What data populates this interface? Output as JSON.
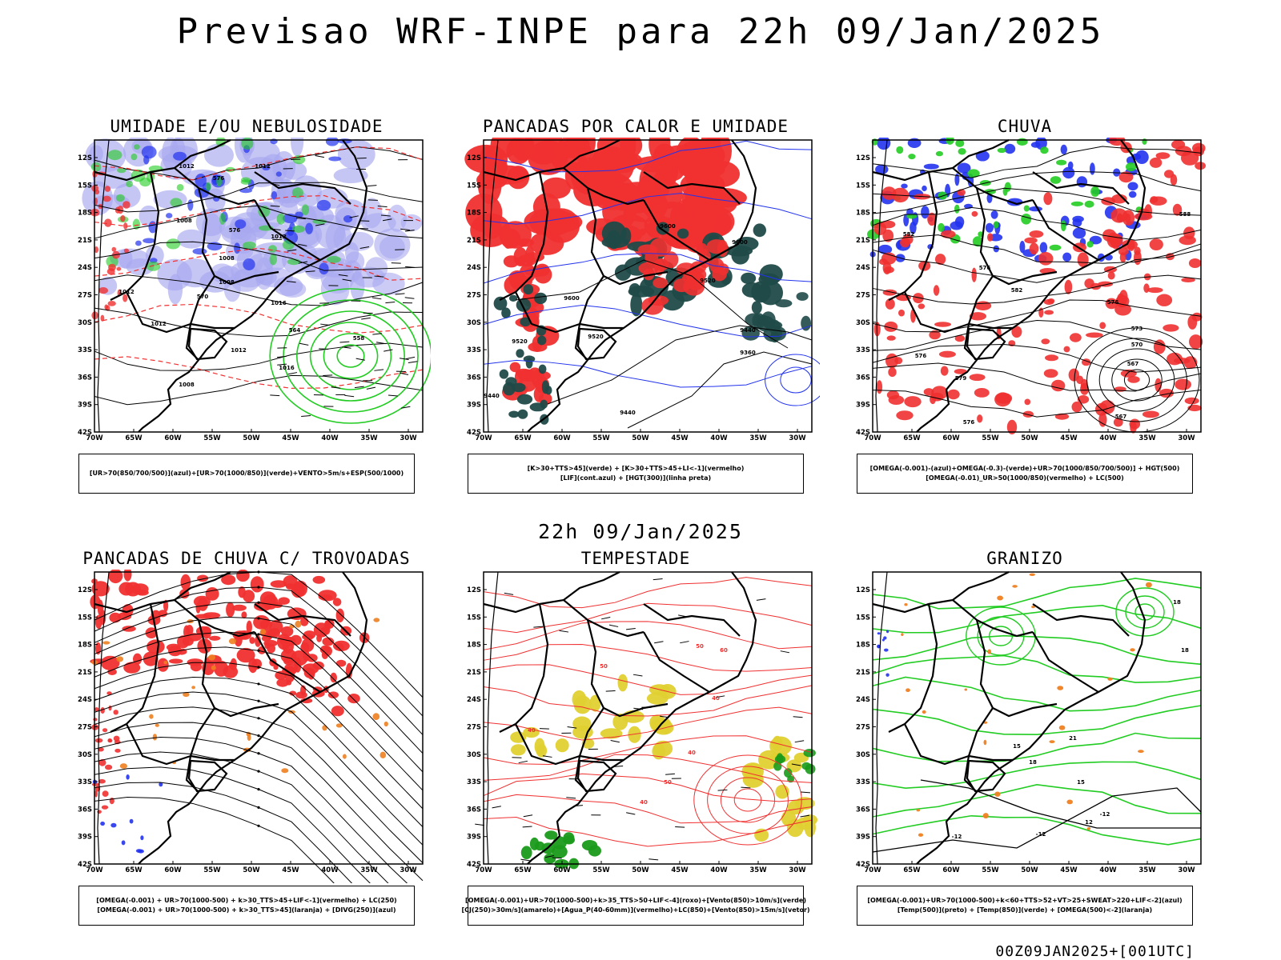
{
  "page": {
    "main_title": "Previsao WRF-INPE  para 22h 09/Jan/2025",
    "mid_title": "22h 09/Jan/2025",
    "footer": "00Z09JAN2025+[001UTC]"
  },
  "axes": {
    "lat_ticks": [
      "12S",
      "15S",
      "18S",
      "21S",
      "24S",
      "27S",
      "30S",
      "33S",
      "36S",
      "39S",
      "42S"
    ],
    "lon_ticks": [
      "70W",
      "65W",
      "60W",
      "55W",
      "50W",
      "45W",
      "40W",
      "35W",
      "30W"
    ]
  },
  "colors": {
    "blue": "#2233ee",
    "lightblue": "#a8a8f0",
    "green": "#22cc22",
    "red": "#f03030",
    "darkteal": "#1f4a48",
    "orange": "#f08020",
    "yellow": "#e0d030",
    "darkgreen": "#1a9a1a",
    "black": "#000000"
  },
  "panels": [
    {
      "id": "umidade",
      "title": "UMIDADE E/OU NEBULOSIDADE",
      "legend": [
        "[UR>70(850/700/500)](azul)+[UR>70(1000/850)](verde)+VENTO>5m/s+ESP(500/1000)"
      ],
      "contour_labels": [
        "1012",
        "1012",
        "1008",
        "1008",
        "1012",
        "1016",
        "576",
        "576",
        "570",
        "564",
        "558",
        "1016",
        "1012",
        "1008",
        "1008",
        "1012",
        "1012"
      ]
    },
    {
      "id": "pancadas",
      "title": "PANCADAS POR CALOR E UMIDADE",
      "legend": [
        "[K>30+TTS>45](verde) + [K>30+TTS>45+LI<-1](vermelho)",
        "[LIF](cont.azul) + [HGT(300)](linha preta)"
      ],
      "contour_labels": [
        "9600",
        "9600",
        "9520",
        "9440",
        "9360",
        "9520",
        "9440",
        "9600",
        "9520",
        "9440"
      ]
    },
    {
      "id": "chuva",
      "title": "CHUVA",
      "legend": [
        "[OMEGA(-0.001)-(azul)+OMEGA(-0.3)-(verde)+UR>70(1000/850/700/500)] + HGT(500)",
        "[OMEGA(-0.01)_UR>50(1000/850)(vermelho) + LC(500)"
      ],
      "contour_labels": [
        "576",
        "582",
        "576",
        "573",
        "570",
        "567",
        "567",
        "576",
        "588",
        "582",
        "579",
        "576"
      ]
    },
    {
      "id": "trovoadas",
      "title": "PANCADAS DE CHUVA C/ TROVOADAS",
      "legend": [
        "[OMEGA(-0.001) + UR>70(1000-500) + k>30_TTS>45+LIF<-1](vermelho) + LC(250)",
        "[OMEGA(-0.001) + UR>70(1000-500) + k>30_TTS>45](laranja) + [DIVG(250)](azul)"
      ],
      "contour_labels": []
    },
    {
      "id": "tempestade",
      "title": "TEMPESTADE",
      "legend": [
        "[OMEGA(-0.001)+UR>70(1000-500)+k>35_TTS>50+LIF<-4](roxo)+[Vento(850)>10m/s](verde)",
        "[CJ(250)>30m/s](amarelo)+[Agua_P(40-60mm)](vermelho)+LC(850)+[Vento(850)>15m/s](vetor)"
      ],
      "contour_labels": [
        "50",
        "40",
        "40",
        "50",
        "40",
        "60",
        "50",
        "40"
      ]
    },
    {
      "id": "granizo",
      "title": "GRANIZO",
      "legend": [
        "[OMEGA(-0.001)+UR>70(1000-500)+k<60+TTS>52+VT>25+SWEAT>220+LIF<-2](azul)",
        "[Temp(500)](preto) + [Temp(850)](verde) + [OMEGA(500)<-2](laranja)"
      ],
      "contour_labels": [
        "-12",
        "-12",
        "15",
        "18",
        "21",
        "18",
        "15",
        "12",
        "-12",
        "18"
      ]
    }
  ]
}
